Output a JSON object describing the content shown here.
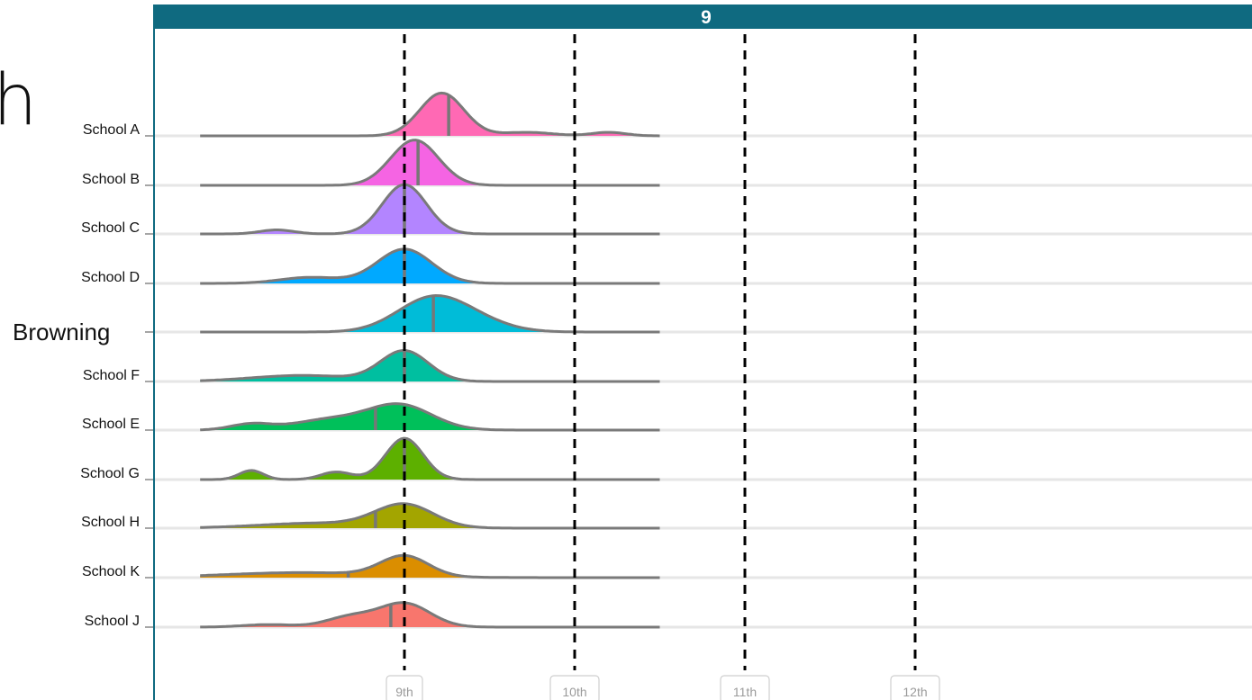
{
  "fragments": {
    "left_letter": "h",
    "left_label": "Browning"
  },
  "chart_data": {
    "type": "ridgeline",
    "title": "",
    "facet": "9",
    "xlabel": "",
    "ylabel": "",
    "xlim": [
      8.0,
      12.5
    ],
    "x_ticks": [
      {
        "value": 9.0,
        "label": "9th"
      },
      {
        "value": 10.0,
        "label": "10th"
      },
      {
        "value": 11.0,
        "label": "11th"
      },
      {
        "value": 12.0,
        "label": "12th"
      }
    ],
    "reference_lines": [
      9.0,
      10.0,
      11.0,
      12.0
    ],
    "grid": true,
    "series": [
      {
        "name": "School A",
        "label": "School A",
        "color": "#FF69B4",
        "median": 9.26,
        "x_range": [
          7.8,
          10.5
        ],
        "peaks": [
          {
            "x": 9.22,
            "h": 0.85,
            "w": 0.13
          },
          {
            "x": 9.72,
            "h": 0.07,
            "w": 0.15
          },
          {
            "x": 10.2,
            "h": 0.07,
            "w": 0.1
          }
        ]
      },
      {
        "name": "School B",
        "label": "School B",
        "color": "#F564E3",
        "median": 9.08,
        "x_range": [
          7.8,
          10.5
        ],
        "peaks": [
          {
            "x": 9.06,
            "h": 0.9,
            "w": 0.14
          }
        ]
      },
      {
        "name": "School C",
        "label": "School C",
        "color": "#B385FF",
        "median": 9.0,
        "x_range": [
          7.8,
          10.5
        ],
        "peaks": [
          {
            "x": 9.0,
            "h": 0.98,
            "w": 0.13
          },
          {
            "x": 8.25,
            "h": 0.08,
            "w": 0.1
          }
        ]
      },
      {
        "name": "School D",
        "label": "School D",
        "color": "#00A9FF",
        "median": 9.0,
        "x_range": [
          7.8,
          10.5
        ],
        "peaks": [
          {
            "x": 9.0,
            "h": 0.68,
            "w": 0.16
          },
          {
            "x": 8.45,
            "h": 0.12,
            "w": 0.18
          }
        ]
      },
      {
        "name": "",
        "label": "",
        "color": "#00BCD8",
        "median": 9.17,
        "x_range": [
          7.8,
          10.5
        ],
        "peaks": [
          {
            "x": 9.15,
            "h": 0.62,
            "w": 0.2
          },
          {
            "x": 9.4,
            "h": 0.2,
            "w": 0.2
          }
        ]
      },
      {
        "name": "School F",
        "label": "School F",
        "color": "#00BFA0",
        "median": 9.0,
        "x_range": [
          7.8,
          10.5
        ],
        "peaks": [
          {
            "x": 9.0,
            "h": 0.6,
            "w": 0.14
          },
          {
            "x": 8.4,
            "h": 0.12,
            "w": 0.3
          }
        ]
      },
      {
        "name": "School E",
        "label": "School E",
        "color": "#00C05A",
        "median": 8.83,
        "x_range": [
          7.8,
          10.5
        ],
        "peaks": [
          {
            "x": 8.97,
            "h": 0.5,
            "w": 0.19
          },
          {
            "x": 8.55,
            "h": 0.2,
            "w": 0.2
          },
          {
            "x": 8.1,
            "h": 0.12,
            "w": 0.12
          }
        ]
      },
      {
        "name": "School G",
        "label": "School G",
        "color": "#5DB000",
        "median": 9.0,
        "x_range": [
          7.8,
          10.5
        ],
        "peaks": [
          {
            "x": 9.0,
            "h": 0.82,
            "w": 0.11
          },
          {
            "x": 8.1,
            "h": 0.18,
            "w": 0.07
          },
          {
            "x": 8.6,
            "h": 0.15,
            "w": 0.09
          }
        ]
      },
      {
        "name": "School H",
        "label": "School H",
        "color": "#A3A500",
        "median": 8.83,
        "x_range": [
          7.8,
          10.5
        ],
        "peaks": [
          {
            "x": 9.0,
            "h": 0.45,
            "w": 0.17
          },
          {
            "x": 8.5,
            "h": 0.1,
            "w": 0.35
          }
        ]
      },
      {
        "name": "School K",
        "label": "School K",
        "color": "#DB8E00",
        "median": 8.67,
        "x_range": [
          7.8,
          10.5
        ],
        "peaks": [
          {
            "x": 9.0,
            "h": 0.4,
            "w": 0.14
          },
          {
            "x": 8.4,
            "h": 0.1,
            "w": 0.45
          }
        ]
      },
      {
        "name": "School J",
        "label": "School J",
        "color": "#F8766D",
        "median": 8.92,
        "x_range": [
          7.8,
          10.5
        ],
        "peaks": [
          {
            "x": 9.0,
            "h": 0.47,
            "w": 0.15
          },
          {
            "x": 8.68,
            "h": 0.2,
            "w": 0.14
          },
          {
            "x": 8.2,
            "h": 0.05,
            "w": 0.15
          }
        ]
      }
    ]
  }
}
